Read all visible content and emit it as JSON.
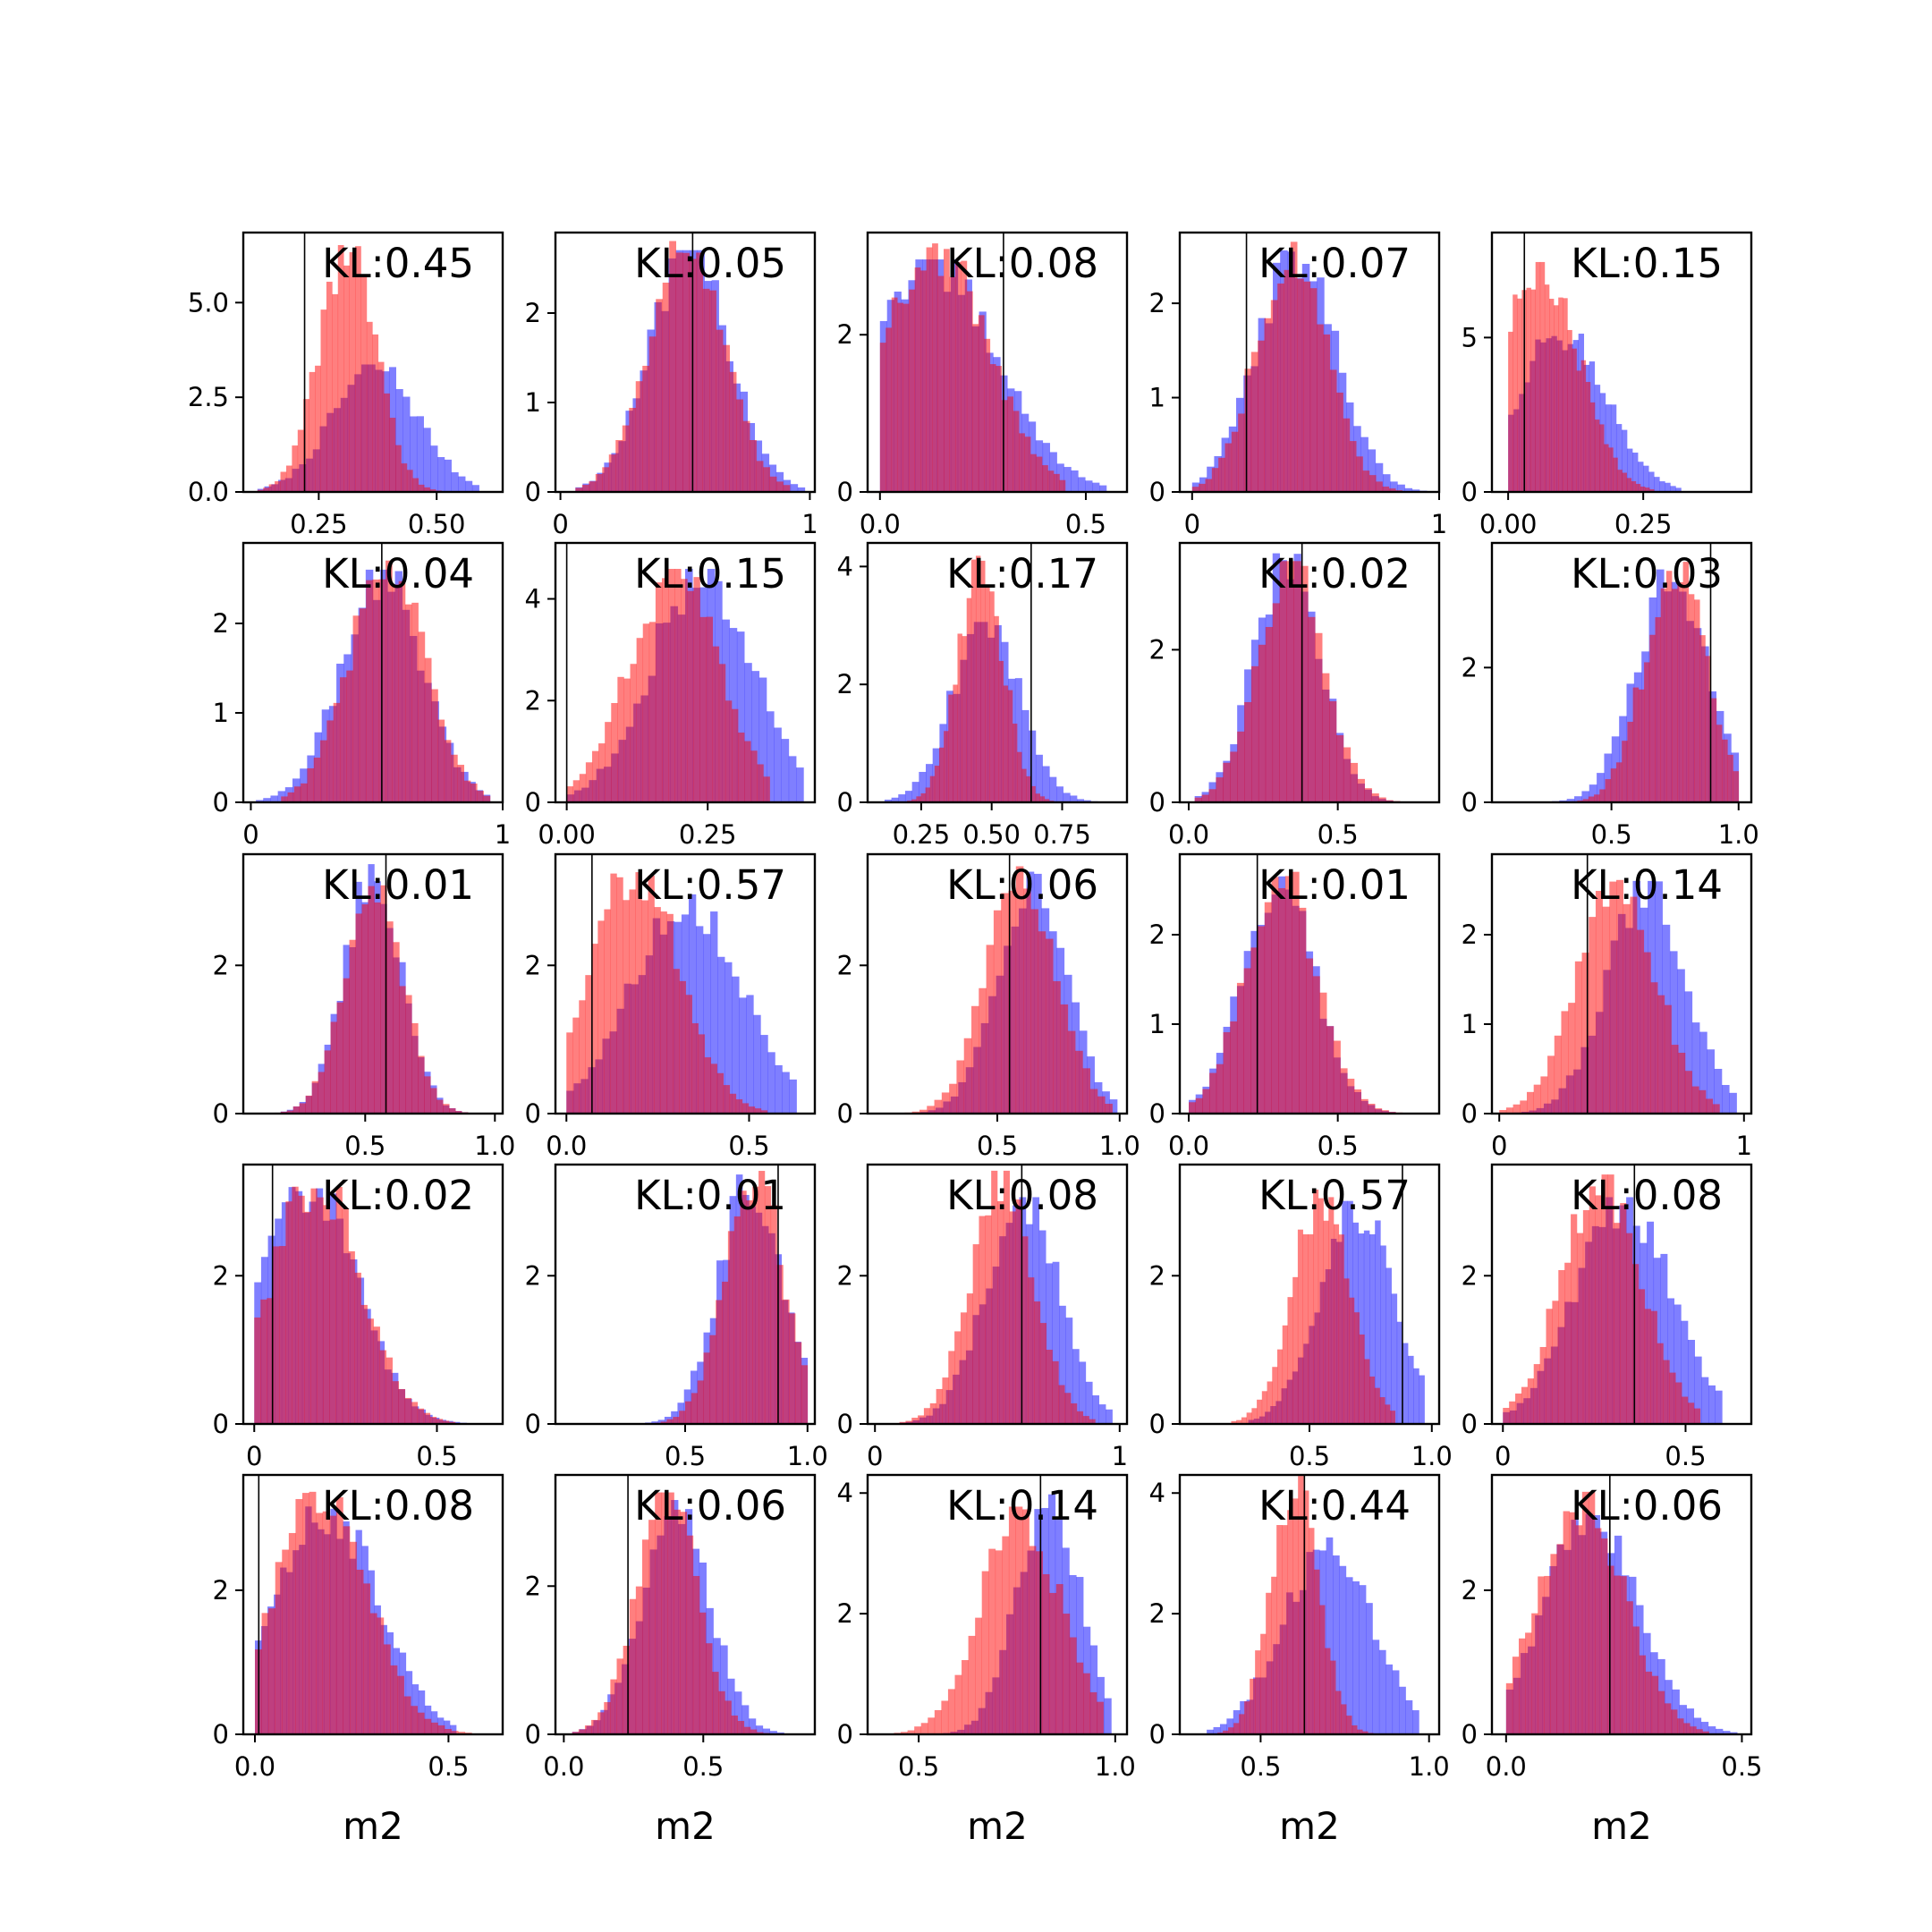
{
  "figure": {
    "colors": {
      "blue": "#0000ff",
      "red": "#ff0000",
      "axes": "#000000",
      "background": "#ffffff"
    },
    "bar_alpha": 0.5
  },
  "chart_data": [
    {
      "type": "histogram",
      "row": 0,
      "col": 0,
      "annotation": "KL:0.45",
      "xlim": [
        0.09,
        0.64
      ],
      "ylim": [
        0,
        6.85
      ],
      "xticks": [
        0.25,
        0.5
      ],
      "xticklabels": [
        "0.25",
        "0.50"
      ],
      "yticks": [
        0,
        2.5,
        5
      ],
      "yticklabels": [
        "0.0",
        "2.5",
        "5.0"
      ],
      "vline": 0.22,
      "xlabel": "",
      "blue": {
        "center": 0.37,
        "sd": 0.09,
        "min": 0.12,
        "max": 0.59,
        "peak": 3.3
      },
      "red": {
        "center": 0.31,
        "sd": 0.06,
        "min": 0.12,
        "max": 0.51,
        "peak": 6.4
      }
    },
    {
      "type": "histogram",
      "row": 0,
      "col": 1,
      "annotation": "KL:0.05",
      "xlim": [
        -0.02,
        1.02
      ],
      "ylim": [
        0,
        2.9
      ],
      "xticks": [
        0,
        1
      ],
      "xticklabels": [
        "0",
        "1"
      ],
      "yticks": [
        0,
        1,
        2
      ],
      "yticklabels": [
        "0",
        "1",
        "2"
      ],
      "vline": 0.53,
      "xlabel": "",
      "blue": {
        "center": 0.52,
        "sd": 0.16,
        "min": 0.06,
        "max": 0.98,
        "peak": 2.65
      },
      "red": {
        "center": 0.5,
        "sd": 0.15,
        "min": 0.06,
        "max": 0.92,
        "peak": 2.75
      }
    },
    {
      "type": "histogram",
      "row": 0,
      "col": 2,
      "annotation": "KL:0.08",
      "xlim": [
        -0.03,
        0.6
      ],
      "ylim": [
        0,
        3.3
      ],
      "xticks": [
        0,
        0.5
      ],
      "xticklabels": [
        "0.0",
        "0.5"
      ],
      "yticks": [
        0,
        2
      ],
      "yticklabels": [
        "0",
        "2"
      ],
      "vline": 0.3,
      "xlabel": "",
      "blue": {
        "center": 0.12,
        "sd": 0.16,
        "min": 0.0,
        "max": 0.55,
        "peak": 2.9
      },
      "red": {
        "center": 0.13,
        "sd": 0.13,
        "min": 0.0,
        "max": 0.45,
        "peak": 3.1
      }
    },
    {
      "type": "histogram",
      "row": 0,
      "col": 3,
      "annotation": "KL:0.07",
      "xlim": [
        -0.05,
        1.0
      ],
      "ylim": [
        0,
        2.75
      ],
      "xticks": [
        0,
        1
      ],
      "xticklabels": [
        "0",
        "1"
      ],
      "yticks": [
        0,
        1,
        2
      ],
      "yticklabels": [
        "0",
        "1",
        "2"
      ],
      "vline": 0.22,
      "xlabel": "",
      "blue": {
        "center": 0.42,
        "sd": 0.16,
        "min": 0.0,
        "max": 0.95,
        "peak": 2.55
      },
      "red": {
        "center": 0.4,
        "sd": 0.14,
        "min": 0.0,
        "max": 0.85,
        "peak": 2.6
      }
    },
    {
      "type": "histogram",
      "row": 0,
      "col": 4,
      "annotation": "KL:0.15",
      "xlim": [
        -0.03,
        0.45
      ],
      "ylim": [
        0,
        8.4
      ],
      "xticks": [
        0,
        0.25
      ],
      "xticklabels": [
        "0.00",
        "0.25"
      ],
      "yticks": [
        0,
        5
      ],
      "yticklabels": [
        "0",
        "5"
      ],
      "vline": 0.03,
      "xlabel": "",
      "blue": {
        "center": 0.1,
        "sd": 0.08,
        "min": 0.0,
        "max": 0.32,
        "peak": 5.2
      },
      "red": {
        "center": 0.06,
        "sd": 0.07,
        "min": 0.0,
        "max": 0.27,
        "peak": 7.3
      }
    },
    {
      "type": "histogram",
      "row": 1,
      "col": 0,
      "annotation": "KL:0.04",
      "xlim": [
        -0.03,
        1.0
      ],
      "ylim": [
        0,
        2.9
      ],
      "xticks": [
        0,
        1
      ],
      "xticklabels": [
        "0",
        "1"
      ],
      "yticks": [
        0,
        1,
        2
      ],
      "yticklabels": [
        "0",
        "1",
        "2"
      ],
      "vline": 0.52,
      "xlabel": "",
      "blue": {
        "center": 0.52,
        "sd": 0.16,
        "min": 0.02,
        "max": 0.95,
        "peak": 2.55
      },
      "red": {
        "center": 0.54,
        "sd": 0.15,
        "min": 0.12,
        "max": 0.95,
        "peak": 2.65
      }
    },
    {
      "type": "histogram",
      "row": 1,
      "col": 1,
      "annotation": "KL:0.15",
      "xlim": [
        -0.02,
        0.44
      ],
      "ylim": [
        0,
        5.1
      ],
      "xticks": [
        0,
        0.25
      ],
      "xticklabels": [
        "0.00",
        "0.25"
      ],
      "yticks": [
        0,
        2,
        4
      ],
      "yticklabels": [
        "0",
        "2",
        "4"
      ],
      "vline": 0.0,
      "xlabel": "",
      "blue": {
        "center": 0.24,
        "sd": 0.09,
        "min": 0.0,
        "max": 0.42,
        "peak": 4.5
      },
      "red": {
        "center": 0.19,
        "sd": 0.08,
        "min": 0.0,
        "max": 0.36,
        "peak": 4.5
      }
    },
    {
      "type": "histogram",
      "row": 1,
      "col": 2,
      "annotation": "KL:0.17",
      "xlim": [
        0.06,
        0.98
      ],
      "ylim": [
        0,
        4.4
      ],
      "xticks": [
        0.25,
        0.5,
        0.75
      ],
      "xticklabels": [
        "0.25",
        "0.50",
        "0.75"
      ],
      "yticks": [
        0,
        2,
        4
      ],
      "yticklabels": [
        "0",
        "2",
        "4"
      ],
      "vline": 0.64,
      "xlabel": "",
      "blue": {
        "center": 0.48,
        "sd": 0.12,
        "min": 0.12,
        "max": 0.9,
        "peak": 3.0
      },
      "red": {
        "center": 0.46,
        "sd": 0.08,
        "min": 0.2,
        "max": 0.72,
        "peak": 4.1
      }
    },
    {
      "type": "histogram",
      "row": 1,
      "col": 3,
      "annotation": "KL:0.02",
      "xlim": [
        -0.03,
        0.84
      ],
      "ylim": [
        0,
        3.4
      ],
      "xticks": [
        0,
        0.5
      ],
      "xticklabels": [
        "0.0",
        "0.5"
      ],
      "yticks": [
        0,
        2
      ],
      "yticklabels": [
        "0",
        "2"
      ],
      "vline": 0.38,
      "xlabel": "",
      "blue": {
        "center": 0.33,
        "sd": 0.11,
        "min": 0.02,
        "max": 0.78,
        "peak": 3.2
      },
      "red": {
        "center": 0.34,
        "sd": 0.11,
        "min": 0.02,
        "max": 0.78,
        "peak": 3.1
      }
    },
    {
      "type": "histogram",
      "row": 1,
      "col": 4,
      "annotation": "KL:0.03",
      "xlim": [
        0.03,
        1.05
      ],
      "ylim": [
        0,
        3.85
      ],
      "xticks": [
        0.5,
        1
      ],
      "xticklabels": [
        "0.5",
        "1.0"
      ],
      "yticks": [
        0,
        2
      ],
      "yticklabels": [
        "0",
        "2"
      ],
      "vline": 0.89,
      "xlabel": "",
      "blue": {
        "center": 0.74,
        "sd": 0.14,
        "min": 0.06,
        "max": 1.0,
        "peak": 3.4
      },
      "red": {
        "center": 0.75,
        "sd": 0.12,
        "min": 0.3,
        "max": 1.0,
        "peak": 3.5
      }
    },
    {
      "type": "histogram",
      "row": 2,
      "col": 0,
      "annotation": "KL:0.01",
      "xlim": [
        0.03,
        1.03
      ],
      "ylim": [
        0,
        3.5
      ],
      "xticks": [
        0.5,
        1
      ],
      "xticklabels": [
        "0.5",
        "1.0"
      ],
      "yticks": [
        0,
        2
      ],
      "yticklabels": [
        "0",
        "2"
      ],
      "vline": 0.58,
      "xlabel": "",
      "blue": {
        "center": 0.53,
        "sd": 0.11,
        "min": 0.15,
        "max": 0.92,
        "peak": 3.3
      },
      "red": {
        "center": 0.53,
        "sd": 0.11,
        "min": 0.15,
        "max": 0.92,
        "peak": 3.2
      }
    },
    {
      "type": "histogram",
      "row": 2,
      "col": 1,
      "annotation": "KL:0.57",
      "xlim": [
        -0.03,
        0.68
      ],
      "ylim": [
        0,
        3.5
      ],
      "xticks": [
        0,
        0.5
      ],
      "xticklabels": [
        "0.0",
        "0.5"
      ],
      "yticks": [
        0,
        2
      ],
      "yticklabels": [
        "0",
        "2"
      ],
      "vline": 0.07,
      "xlabel": "",
      "blue": {
        "center": 0.33,
        "sd": 0.15,
        "min": 0.0,
        "max": 0.63,
        "peak": 2.9
      },
      "red": {
        "center": 0.19,
        "sd": 0.12,
        "min": 0.0,
        "max": 0.55,
        "peak": 3.3
      }
    },
    {
      "type": "histogram",
      "row": 2,
      "col": 2,
      "annotation": "KL:0.06",
      "xlim": [
        -0.03,
        1.03
      ],
      "ylim": [
        0,
        3.5
      ],
      "xticks": [
        0.5,
        1
      ],
      "xticklabels": [
        "0.5",
        "1.0"
      ],
      "yticks": [
        0,
        2
      ],
      "yticklabels": [
        "0",
        "2"
      ],
      "vline": 0.55,
      "xlabel": "",
      "blue": {
        "center": 0.64,
        "sd": 0.14,
        "min": 0.0,
        "max": 0.99,
        "peak": 3.2
      },
      "red": {
        "center": 0.6,
        "sd": 0.14,
        "min": 0.0,
        "max": 0.97,
        "peak": 3.3
      }
    },
    {
      "type": "histogram",
      "row": 2,
      "col": 3,
      "annotation": "KL:0.01",
      "xlim": [
        -0.03,
        0.84
      ],
      "ylim": [
        0,
        2.9
      ],
      "xticks": [
        0,
        0.5
      ],
      "xticklabels": [
        "0.0",
        "0.5"
      ],
      "yticks": [
        0,
        1,
        2
      ],
      "yticklabels": [
        "0",
        "1",
        "2"
      ],
      "vline": 0.23,
      "xlabel": "",
      "blue": {
        "center": 0.3,
        "sd": 0.12,
        "min": 0.0,
        "max": 0.74,
        "peak": 2.6
      },
      "red": {
        "center": 0.31,
        "sd": 0.12,
        "min": 0.0,
        "max": 0.74,
        "peak": 2.65
      }
    },
    {
      "type": "histogram",
      "row": 2,
      "col": 4,
      "annotation": "KL:0.14",
      "xlim": [
        -0.03,
        1.03
      ],
      "ylim": [
        0,
        2.9
      ],
      "xticks": [
        0,
        1
      ],
      "xticklabels": [
        "0",
        "1"
      ],
      "yticks": [
        0,
        1,
        2
      ],
      "yticklabels": [
        "0",
        "1",
        "2"
      ],
      "vline": 0.36,
      "xlabel": "",
      "blue": {
        "center": 0.6,
        "sd": 0.16,
        "min": 0.0,
        "max": 0.97,
        "peak": 2.55
      },
      "red": {
        "center": 0.48,
        "sd": 0.16,
        "min": 0.0,
        "max": 0.9,
        "peak": 2.6
      }
    },
    {
      "type": "histogram",
      "row": 3,
      "col": 0,
      "annotation": "KL:0.02",
      "xlim": [
        -0.03,
        0.68
      ],
      "ylim": [
        0,
        3.5
      ],
      "xticks": [
        0,
        0.5
      ],
      "xticklabels": [
        "0",
        "0.5"
      ],
      "yticks": [
        0,
        2
      ],
      "yticklabels": [
        "0",
        "2"
      ],
      "vline": 0.05,
      "xlabel": "",
      "blue": {
        "center": 0.15,
        "sd": 0.13,
        "min": 0.0,
        "max": 0.6,
        "peak": 3.2
      },
      "red": {
        "center": 0.17,
        "sd": 0.12,
        "min": 0.0,
        "max": 0.55,
        "peak": 3.3
      }
    },
    {
      "type": "histogram",
      "row": 3,
      "col": 1,
      "annotation": "KL:0.01",
      "xlim": [
        -0.03,
        1.03
      ],
      "ylim": [
        0,
        3.5
      ],
      "xticks": [
        0.5,
        1
      ],
      "xticklabels": [
        "0.5",
        "1.0"
      ],
      "yticks": [
        0,
        2
      ],
      "yticklabels": [
        "0",
        "2"
      ],
      "vline": 0.88,
      "xlabel": "",
      "blue": {
        "center": 0.77,
        "sd": 0.13,
        "min": 0.15,
        "max": 1.0,
        "peak": 3.3
      },
      "red": {
        "center": 0.78,
        "sd": 0.12,
        "min": 0.2,
        "max": 1.0,
        "peak": 3.4
      }
    },
    {
      "type": "histogram",
      "row": 3,
      "col": 2,
      "annotation": "KL:0.08",
      "xlim": [
        -0.03,
        1.03
      ],
      "ylim": [
        0,
        3.5
      ],
      "xticks": [
        0,
        1
      ],
      "xticklabels": [
        "0",
        "1"
      ],
      "yticks": [
        0,
        2
      ],
      "yticklabels": [
        "0",
        "2"
      ],
      "vline": 0.6,
      "xlabel": "",
      "blue": {
        "center": 0.6,
        "sd": 0.15,
        "min": 0.1,
        "max": 0.97,
        "peak": 3.0
      },
      "red": {
        "center": 0.52,
        "sd": 0.13,
        "min": 0.1,
        "max": 0.9,
        "peak": 3.35
      }
    },
    {
      "type": "histogram",
      "row": 3,
      "col": 3,
      "annotation": "KL:0.57",
      "xlim": [
        -0.03,
        1.03
      ],
      "ylim": [
        0,
        3.5
      ],
      "xticks": [
        0.5,
        1
      ],
      "xticklabels": [
        "0.5",
        "1.0"
      ],
      "yticks": [
        0,
        2
      ],
      "yticklabels": [
        "0",
        "2"
      ],
      "vline": 0.88,
      "xlabel": "",
      "blue": {
        "center": 0.69,
        "sd": 0.15,
        "min": 0.25,
        "max": 0.97,
        "peak": 2.95
      },
      "red": {
        "center": 0.55,
        "sd": 0.12,
        "min": 0.18,
        "max": 0.85,
        "peak": 3.1
      }
    },
    {
      "type": "histogram",
      "row": 3,
      "col": 4,
      "annotation": "KL:0.08",
      "xlim": [
        -0.03,
        0.68
      ],
      "ylim": [
        0,
        3.5
      ],
      "xticks": [
        0,
        0.5
      ],
      "xticklabels": [
        "0",
        "0.5"
      ],
      "yticks": [
        0,
        2
      ],
      "yticklabels": [
        "0",
        "2"
      ],
      "vline": 0.36,
      "xlabel": "",
      "blue": {
        "center": 0.33,
        "sd": 0.13,
        "min": 0.0,
        "max": 0.6,
        "peak": 3.0
      },
      "red": {
        "center": 0.27,
        "sd": 0.11,
        "min": 0.0,
        "max": 0.54,
        "peak": 3.3
      }
    },
    {
      "type": "histogram",
      "row": 4,
      "col": 0,
      "annotation": "KL:0.08",
      "xlim": [
        -0.03,
        0.64
      ],
      "ylim": [
        0,
        3.6
      ],
      "xticks": [
        0,
        0.5
      ],
      "xticklabels": [
        "0.0",
        "0.5"
      ],
      "yticks": [
        0,
        2
      ],
      "yticklabels": [
        "0",
        "2"
      ],
      "vline": 0.01,
      "xlabel": "m2",
      "blue": {
        "center": 0.19,
        "sd": 0.13,
        "min": 0.0,
        "max": 0.52,
        "peak": 3.1
      },
      "red": {
        "center": 0.17,
        "sd": 0.12,
        "min": 0.0,
        "max": 0.56,
        "peak": 3.3
      }
    },
    {
      "type": "histogram",
      "row": 4,
      "col": 1,
      "annotation": "KL:0.06",
      "xlim": [
        -0.03,
        0.9
      ],
      "ylim": [
        0,
        3.5
      ],
      "xticks": [
        0,
        0.5
      ],
      "xticklabels": [
        "0.0",
        "0.5"
      ],
      "yticks": [
        0,
        2
      ],
      "yticklabels": [
        "0",
        "2"
      ],
      "vline": 0.23,
      "xlabel": "m2",
      "blue": {
        "center": 0.4,
        "sd": 0.12,
        "min": 0.03,
        "max": 0.84,
        "peak": 3.1
      },
      "red": {
        "center": 0.37,
        "sd": 0.11,
        "min": 0.03,
        "max": 0.76,
        "peak": 3.2
      }
    },
    {
      "type": "histogram",
      "row": 4,
      "col": 2,
      "annotation": "KL:0.14",
      "xlim": [
        0.37,
        1.03
      ],
      "ylim": [
        0,
        4.3
      ],
      "xticks": [
        0.5,
        1
      ],
      "xticklabels": [
        "0.5",
        "1.0"
      ],
      "yticks": [
        0,
        2,
        4
      ],
      "yticklabels": [
        "0",
        "2",
        "4"
      ],
      "vline": 0.81,
      "xlabel": "m2",
      "blue": {
        "center": 0.83,
        "sd": 0.08,
        "min": 0.42,
        "max": 0.99,
        "peak": 3.9
      },
      "red": {
        "center": 0.76,
        "sd": 0.1,
        "min": 0.42,
        "max": 0.97,
        "peak": 3.7
      }
    },
    {
      "type": "histogram",
      "row": 4,
      "col": 3,
      "annotation": "KL:0.44",
      "xlim": [
        0.26,
        1.03
      ],
      "ylim": [
        0,
        4.3
      ],
      "xticks": [
        0.5,
        1
      ],
      "xticklabels": [
        "0.5",
        "1.0"
      ],
      "yticks": [
        0,
        2,
        4
      ],
      "yticklabels": [
        "0",
        "2",
        "4"
      ],
      "vline": 0.63,
      "xlabel": "m2",
      "blue": {
        "center": 0.7,
        "sd": 0.13,
        "min": 0.34,
        "max": 0.97,
        "peak": 3.2
      },
      "red": {
        "center": 0.6,
        "sd": 0.07,
        "min": 0.34,
        "max": 0.85,
        "peak": 4.2
      }
    },
    {
      "type": "histogram",
      "row": 4,
      "col": 4,
      "annotation": "KL:0.06",
      "xlim": [
        -0.03,
        0.52
      ],
      "ylim": [
        0,
        3.6
      ],
      "xticks": [
        0,
        0.5
      ],
      "xticklabels": [
        "0.0",
        "0.5"
      ],
      "yticks": [
        0,
        2
      ],
      "yticklabels": [
        "0",
        "2"
      ],
      "vline": 0.22,
      "xlabel": "m2",
      "blue": {
        "center": 0.18,
        "sd": 0.1,
        "min": 0.0,
        "max": 0.49,
        "peak": 3.0
      },
      "red": {
        "center": 0.16,
        "sd": 0.09,
        "min": 0.0,
        "max": 0.43,
        "peak": 3.3
      }
    }
  ]
}
